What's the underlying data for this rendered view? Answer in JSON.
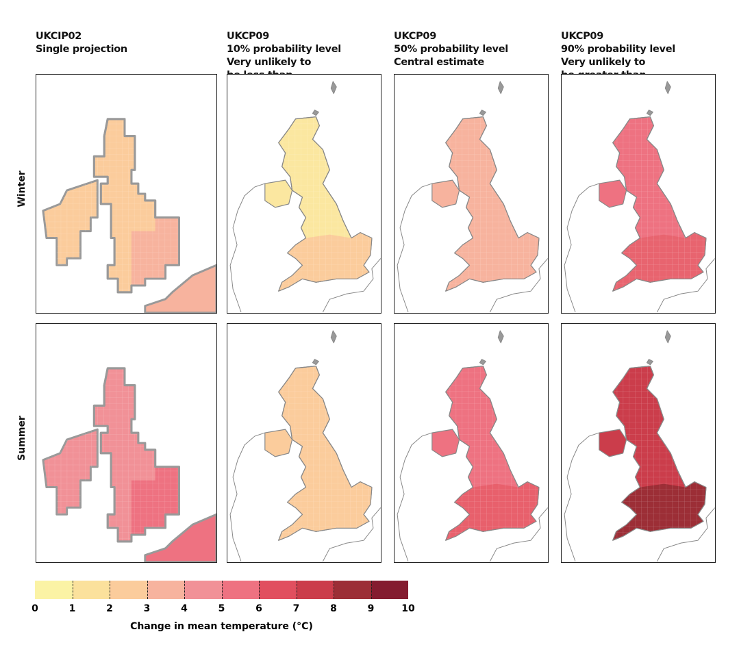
{
  "columns": [
    {
      "lines": [
        "UKCIP02",
        "Single projection"
      ]
    },
    {
      "lines": [
        "UKCP09",
        "10% probability level",
        "Very unlikely to",
        "be less than"
      ]
    },
    {
      "lines": [
        "UKCP09",
        "50% probability level",
        "Central estimate"
      ]
    },
    {
      "lines": [
        "UKCP09",
        "90% probability level",
        "Very unlikely to",
        "be greater than"
      ]
    }
  ],
  "rows": [
    "Winter",
    "Summer"
  ],
  "panel_colors": {
    "winter": [
      [
        "#fbcc9c",
        "#f7b39e"
      ],
      [
        "#fbe7a0",
        "#fbcc9c"
      ],
      [
        "#f7b39e",
        "#f7b39e"
      ],
      [
        "#ee7281",
        "#e8646f"
      ]
    ],
    "summer": [
      [
        "#f19197",
        "#ee7281"
      ],
      [
        "#fbcc9c",
        "#fbcc9c"
      ],
      [
        "#ee7281",
        "#e8606c"
      ],
      [
        "#cb3d4b",
        "#9c2e36"
      ]
    ]
  },
  "legend": {
    "title": "Change in mean temperature (°C)",
    "ticks": [
      "0",
      "1",
      "2",
      "3",
      "4",
      "5",
      "6",
      "7",
      "8",
      "9",
      "10"
    ],
    "colors": [
      "#fbf3a5",
      "#fbe19c",
      "#fbcc9c",
      "#f7b39e",
      "#f19197",
      "#ee7281",
      "#e14f5f",
      "#cb3d4b",
      "#9c2e36",
      "#841c30"
    ]
  }
}
